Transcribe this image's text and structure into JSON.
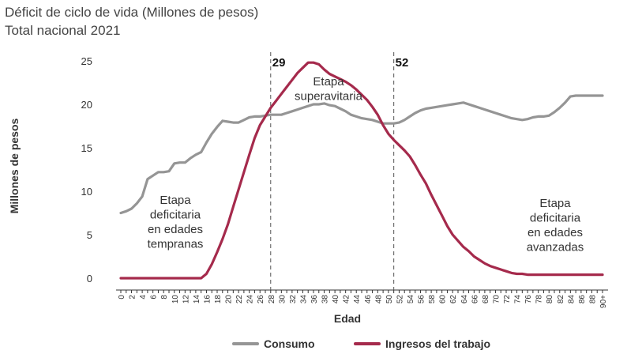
{
  "title": "Déficit de ciclo de vida (Millones de pesos)",
  "subtitle": "Total nacional 2021",
  "chart_data": {
    "type": "line",
    "xlabel": "Edad",
    "ylabel": "Millones de pesos",
    "ylim": [
      0,
      25
    ],
    "yticks": [
      0,
      5,
      10,
      15,
      20,
      25
    ],
    "xticks": [
      "0",
      "2",
      "4",
      "6",
      "8",
      "10",
      "12",
      "14",
      "16",
      "18",
      "20",
      "22",
      "24",
      "26",
      "28",
      "30",
      "32",
      "34",
      "36",
      "38",
      "40",
      "42",
      "44",
      "46",
      "48",
      "50",
      "52",
      "54",
      "56",
      "58",
      "60",
      "62",
      "64",
      "66",
      "68",
      "70",
      "72",
      "74",
      "76",
      "78",
      "80",
      "82",
      "84",
      "86",
      "88",
      "90+"
    ],
    "x": [
      0,
      1,
      2,
      3,
      4,
      5,
      6,
      7,
      8,
      9,
      10,
      11,
      12,
      13,
      14,
      15,
      16,
      17,
      18,
      19,
      20,
      21,
      22,
      23,
      24,
      25,
      26,
      27,
      28,
      29,
      30,
      31,
      32,
      33,
      34,
      35,
      36,
      37,
      38,
      39,
      40,
      41,
      42,
      43,
      44,
      45,
      46,
      47,
      48,
      49,
      50,
      51,
      52,
      53,
      54,
      55,
      56,
      57,
      58,
      59,
      60,
      61,
      62,
      63,
      64,
      65,
      66,
      67,
      68,
      69,
      70,
      71,
      72,
      73,
      74,
      75,
      76,
      77,
      78,
      79,
      80,
      81,
      82,
      83,
      84,
      85,
      86,
      87,
      88,
      89,
      90
    ],
    "series": [
      {
        "name": "Consumo",
        "color": "#959595",
        "values": [
          7.5,
          7.7,
          8.0,
          8.6,
          9.4,
          11.4,
          11.8,
          12.2,
          12.2,
          12.3,
          13.2,
          13.3,
          13.3,
          13.8,
          14.2,
          14.5,
          15.6,
          16.6,
          17.4,
          18.1,
          18.0,
          17.9,
          17.9,
          18.2,
          18.5,
          18.6,
          18.6,
          18.7,
          18.8,
          18.8,
          18.8,
          19.0,
          19.2,
          19.4,
          19.6,
          19.8,
          20.0,
          20.0,
          20.1,
          19.9,
          19.8,
          19.5,
          19.2,
          18.8,
          18.6,
          18.4,
          18.3,
          18.2,
          18.0,
          17.8,
          17.8,
          17.8,
          17.9,
          18.2,
          18.6,
          19.0,
          19.3,
          19.5,
          19.6,
          19.7,
          19.8,
          19.9,
          20.0,
          20.1,
          20.2,
          20.0,
          19.8,
          19.6,
          19.4,
          19.2,
          19.0,
          18.8,
          18.6,
          18.4,
          18.3,
          18.2,
          18.3,
          18.5,
          18.6,
          18.6,
          18.7,
          19.1,
          19.6,
          20.2,
          20.9,
          21.0,
          21.0,
          21.0,
          21.0,
          21.0,
          21.0
        ]
      },
      {
        "name": "Ingresos del trabajo",
        "color": "#a52a4c",
        "values": [
          0,
          0,
          0,
          0,
          0,
          0,
          0,
          0,
          0,
          0,
          0,
          0,
          0,
          0,
          0,
          0,
          0.5,
          1.6,
          3.0,
          4.5,
          6.2,
          8.2,
          10.2,
          12.2,
          14.2,
          16.1,
          17.6,
          18.6,
          19.6,
          20.4,
          21.2,
          22.0,
          22.8,
          23.6,
          24.2,
          24.8,
          24.8,
          24.6,
          24.0,
          23.5,
          23.2,
          22.9,
          22.6,
          22.2,
          21.7,
          21.1,
          20.5,
          19.7,
          18.8,
          17.6,
          16.6,
          15.9,
          15.3,
          14.7,
          14.0,
          13.0,
          11.9,
          10.9,
          9.6,
          8.4,
          7.2,
          6.0,
          5.0,
          4.3,
          3.6,
          3.1,
          2.5,
          2.1,
          1.7,
          1.4,
          1.2,
          1.0,
          0.8,
          0.6,
          0.5,
          0.5,
          0.4,
          0.4,
          0.4,
          0.4,
          0.4,
          0.4,
          0.4,
          0.4,
          0.4,
          0.4,
          0.4,
          0.4,
          0.4,
          0.4,
          0.4
        ]
      }
    ],
    "markers": [
      {
        "x": 29,
        "label": "29"
      },
      {
        "x": 52,
        "label": "52"
      }
    ],
    "annotations": [
      {
        "lines": [
          "Etapa",
          "deficitaria",
          "en edades",
          "tempranas"
        ]
      },
      {
        "lines": [
          "Etapa",
          "superavitaria"
        ]
      },
      {
        "lines": [
          "Etapa",
          "deficitaria",
          "en edades",
          "avanzadas"
        ]
      }
    ],
    "legend_position": "bottom",
    "grid": false
  }
}
